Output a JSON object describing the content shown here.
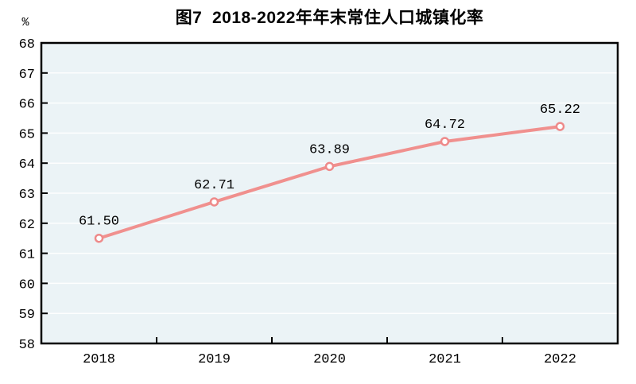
{
  "figure_label": "图7",
  "chart_data": {
    "type": "line",
    "title": "图7  2018-2022年年末常住人口城镇化率",
    "unit_label": "%",
    "xlabel": "",
    "ylabel": "%",
    "categories": [
      "2018",
      "2019",
      "2020",
      "2021",
      "2022"
    ],
    "values": [
      61.5,
      62.71,
      63.89,
      64.72,
      65.22
    ],
    "data_labels": [
      "61.50",
      "62.71",
      "63.89",
      "64.72",
      "65.22"
    ],
    "series_name": "年末常住人口城镇化率",
    "ylim": [
      58,
      68
    ],
    "ytick_step": 1,
    "ytick_labels": [
      "58",
      "59",
      "60",
      "61",
      "62",
      "63",
      "64",
      "65",
      "66",
      "67",
      "68"
    ],
    "grid": "horizontal",
    "legend": "none",
    "colors": {
      "line": "#f0908e",
      "marker_stroke": "#ee8a8a",
      "marker_fill": "#ffffff",
      "plot_bg": "#ebf3f6",
      "gridline": "rgba(255,255,255,0.9)",
      "axis": "#000000",
      "text": "#000000",
      "page_bg": "#ffffff"
    }
  }
}
